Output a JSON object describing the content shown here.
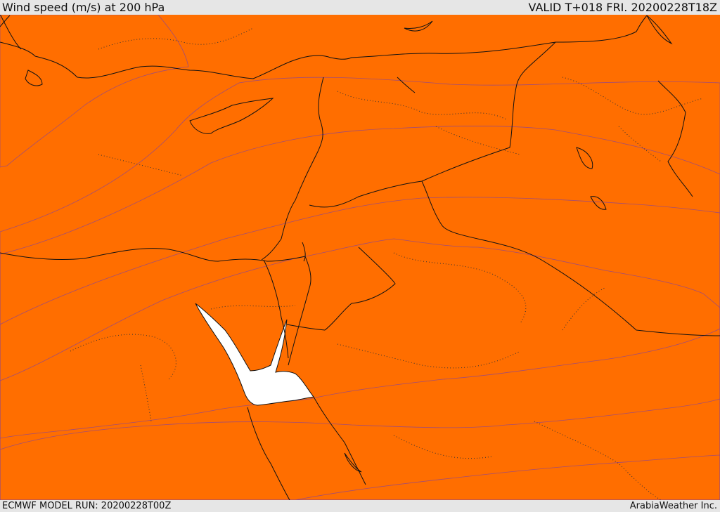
{
  "header": {
    "title": "Wind speed (m/s) at 200 hPa",
    "valid": "VALID T+018 FRI. 20200228T18Z"
  },
  "footer": {
    "model_run": "ECMWF MODEL RUN: 20200228T00Z",
    "credit": "ArabiaWeather Inc."
  },
  "map": {
    "band_colors": {
      "bg": "#ff6e00",
      "b1": "#ff8a00",
      "b2": "#ff5a00",
      "b3": "#ff2a00",
      "b4": "#ff0000",
      "core": "#fce0a8",
      "sea": "#ffffff"
    }
  }
}
